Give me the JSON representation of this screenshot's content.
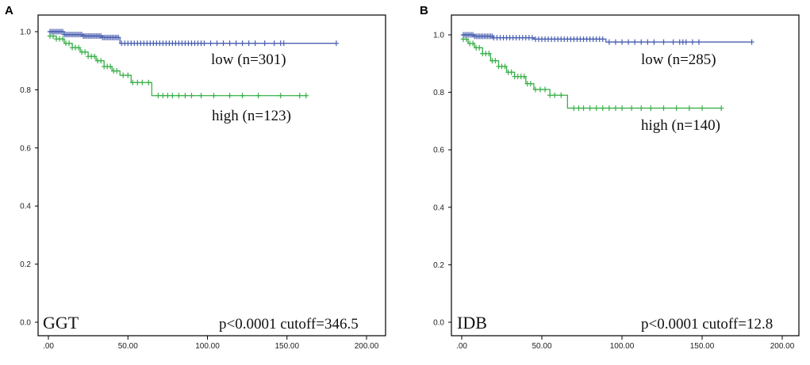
{
  "chart_data": [
    {
      "panel": "A",
      "type": "line",
      "title": "",
      "xlabel": "",
      "ylabel": "",
      "xlim": [
        0,
        200
      ],
      "ylim": [
        0,
        1.0
      ],
      "x_ticks": [
        0,
        50,
        100,
        150,
        200
      ],
      "x_tick_labels": [
        ".00",
        "50.00",
        "100.00",
        "150.00",
        "200.00"
      ],
      "y_ticks": [
        0,
        0.2,
        0.4,
        0.6,
        0.8,
        1.0
      ],
      "y_tick_labels": [
        "0.0",
        "0.2",
        "0.4",
        "0.6",
        "0.8",
        "1.0"
      ],
      "variable_label": "GGT",
      "stats_label": "p<0.0001 cutoff=346.5",
      "series": [
        {
          "name": "low (n=301)",
          "color": "#4a5fb0",
          "steps": [
            [
              0,
              1.0
            ],
            [
              10,
              0.99
            ],
            [
              22,
              0.985
            ],
            [
              34,
              0.98
            ],
            [
              45,
              0.96
            ],
            [
              181,
              0.96
            ]
          ],
          "censor": [
            1,
            2,
            3,
            4,
            5,
            6,
            7,
            8,
            9,
            10,
            11,
            12,
            13,
            14,
            15,
            16,
            17,
            18,
            19,
            20,
            21,
            22,
            23,
            24,
            25,
            26,
            27,
            28,
            29,
            30,
            31,
            32,
            33,
            34,
            35,
            36,
            37,
            38,
            39,
            40,
            41,
            42,
            43,
            44,
            46,
            48,
            50,
            52,
            54,
            56,
            58,
            60,
            62,
            64,
            66,
            68,
            70,
            72,
            74,
            76,
            78,
            80,
            82,
            84,
            86,
            88,
            90,
            92,
            94,
            96,
            98,
            102,
            106,
            110,
            114,
            118,
            122,
            126,
            130,
            136,
            142,
            146,
            148,
            181
          ]
        },
        {
          "name": "high (n=123)",
          "color": "#3ab04a",
          "steps": [
            [
              0,
              0.985
            ],
            [
              5,
              0.975
            ],
            [
              10,
              0.96
            ],
            [
              15,
              0.945
            ],
            [
              20,
              0.93
            ],
            [
              25,
              0.915
            ],
            [
              30,
              0.9
            ],
            [
              35,
              0.88
            ],
            [
              40,
              0.865
            ],
            [
              45,
              0.85
            ],
            [
              52,
              0.825
            ],
            [
              65,
              0.78
            ],
            [
              162,
              0.78
            ]
          ],
          "censor": [
            1,
            3,
            5,
            7,
            9,
            11,
            13,
            15,
            17,
            19,
            21,
            23,
            25,
            27,
            29,
            31,
            33,
            35,
            37,
            39,
            41,
            43,
            47,
            50,
            53,
            56,
            59,
            63,
            69,
            72,
            75,
            78,
            82,
            86,
            90,
            96,
            104,
            114,
            122,
            132,
            146,
            158,
            162
          ]
        }
      ],
      "series_labels": [
        "low (n=301)",
        "high (n=123)"
      ]
    },
    {
      "panel": "B",
      "type": "line",
      "title": "",
      "xlabel": "",
      "ylabel": "",
      "xlim": [
        0,
        200
      ],
      "ylim": [
        0,
        1.0
      ],
      "x_ticks": [
        0,
        50,
        100,
        150,
        200
      ],
      "x_tick_labels": [
        ".00",
        "50.00",
        "100.00",
        "150.00",
        "200.00"
      ],
      "y_ticks": [
        0,
        0.2,
        0.4,
        0.6,
        0.8,
        1.0
      ],
      "y_tick_labels": [
        "0.0",
        "0.2",
        "0.4",
        "0.6",
        "0.8",
        "1.0"
      ],
      "variable_label": "IDB",
      "stats_label": "p<0.0001 cutoff=12.8",
      "series": [
        {
          "name": "low (n=285)",
          "color": "#4a5fb0",
          "steps": [
            [
              0,
              1.0
            ],
            [
              8,
              0.995
            ],
            [
              20,
              0.99
            ],
            [
              45,
              0.985
            ],
            [
              90,
              0.975
            ],
            [
              181,
              0.975
            ]
          ],
          "censor": [
            1,
            2,
            3,
            4,
            5,
            6,
            7,
            8,
            9,
            10,
            11,
            12,
            13,
            14,
            15,
            16,
            17,
            18,
            19,
            20,
            22,
            24,
            26,
            28,
            30,
            32,
            34,
            36,
            38,
            40,
            42,
            44,
            46,
            48,
            50,
            52,
            54,
            56,
            58,
            60,
            62,
            64,
            66,
            68,
            70,
            72,
            74,
            76,
            78,
            80,
            82,
            84,
            86,
            88,
            92,
            96,
            100,
            104,
            108,
            112,
            116,
            120,
            126,
            132,
            136,
            138,
            140,
            144,
            148,
            181
          ]
        },
        {
          "name": "high (n=140)",
          "color": "#3ab04a",
          "steps": [
            [
              0,
              0.985
            ],
            [
              4,
              0.97
            ],
            [
              8,
              0.955
            ],
            [
              13,
              0.935
            ],
            [
              18,
              0.91
            ],
            [
              23,
              0.89
            ],
            [
              28,
              0.87
            ],
            [
              33,
              0.855
            ],
            [
              40,
              0.83
            ],
            [
              45,
              0.81
            ],
            [
              55,
              0.79
            ],
            [
              66,
              0.745
            ],
            [
              162,
              0.745
            ]
          ],
          "censor": [
            1,
            3,
            5,
            7,
            9,
            11,
            13,
            15,
            17,
            19,
            21,
            23,
            25,
            27,
            29,
            31,
            33,
            35,
            37,
            39,
            41,
            43,
            46,
            49,
            52,
            55,
            58,
            62,
            70,
            73,
            76,
            80,
            84,
            88,
            92,
            96,
            100,
            106,
            112,
            118,
            126,
            134,
            142,
            150,
            162
          ]
        }
      ],
      "series_labels": [
        "low (n=285)",
        "high (n=140)"
      ]
    }
  ]
}
